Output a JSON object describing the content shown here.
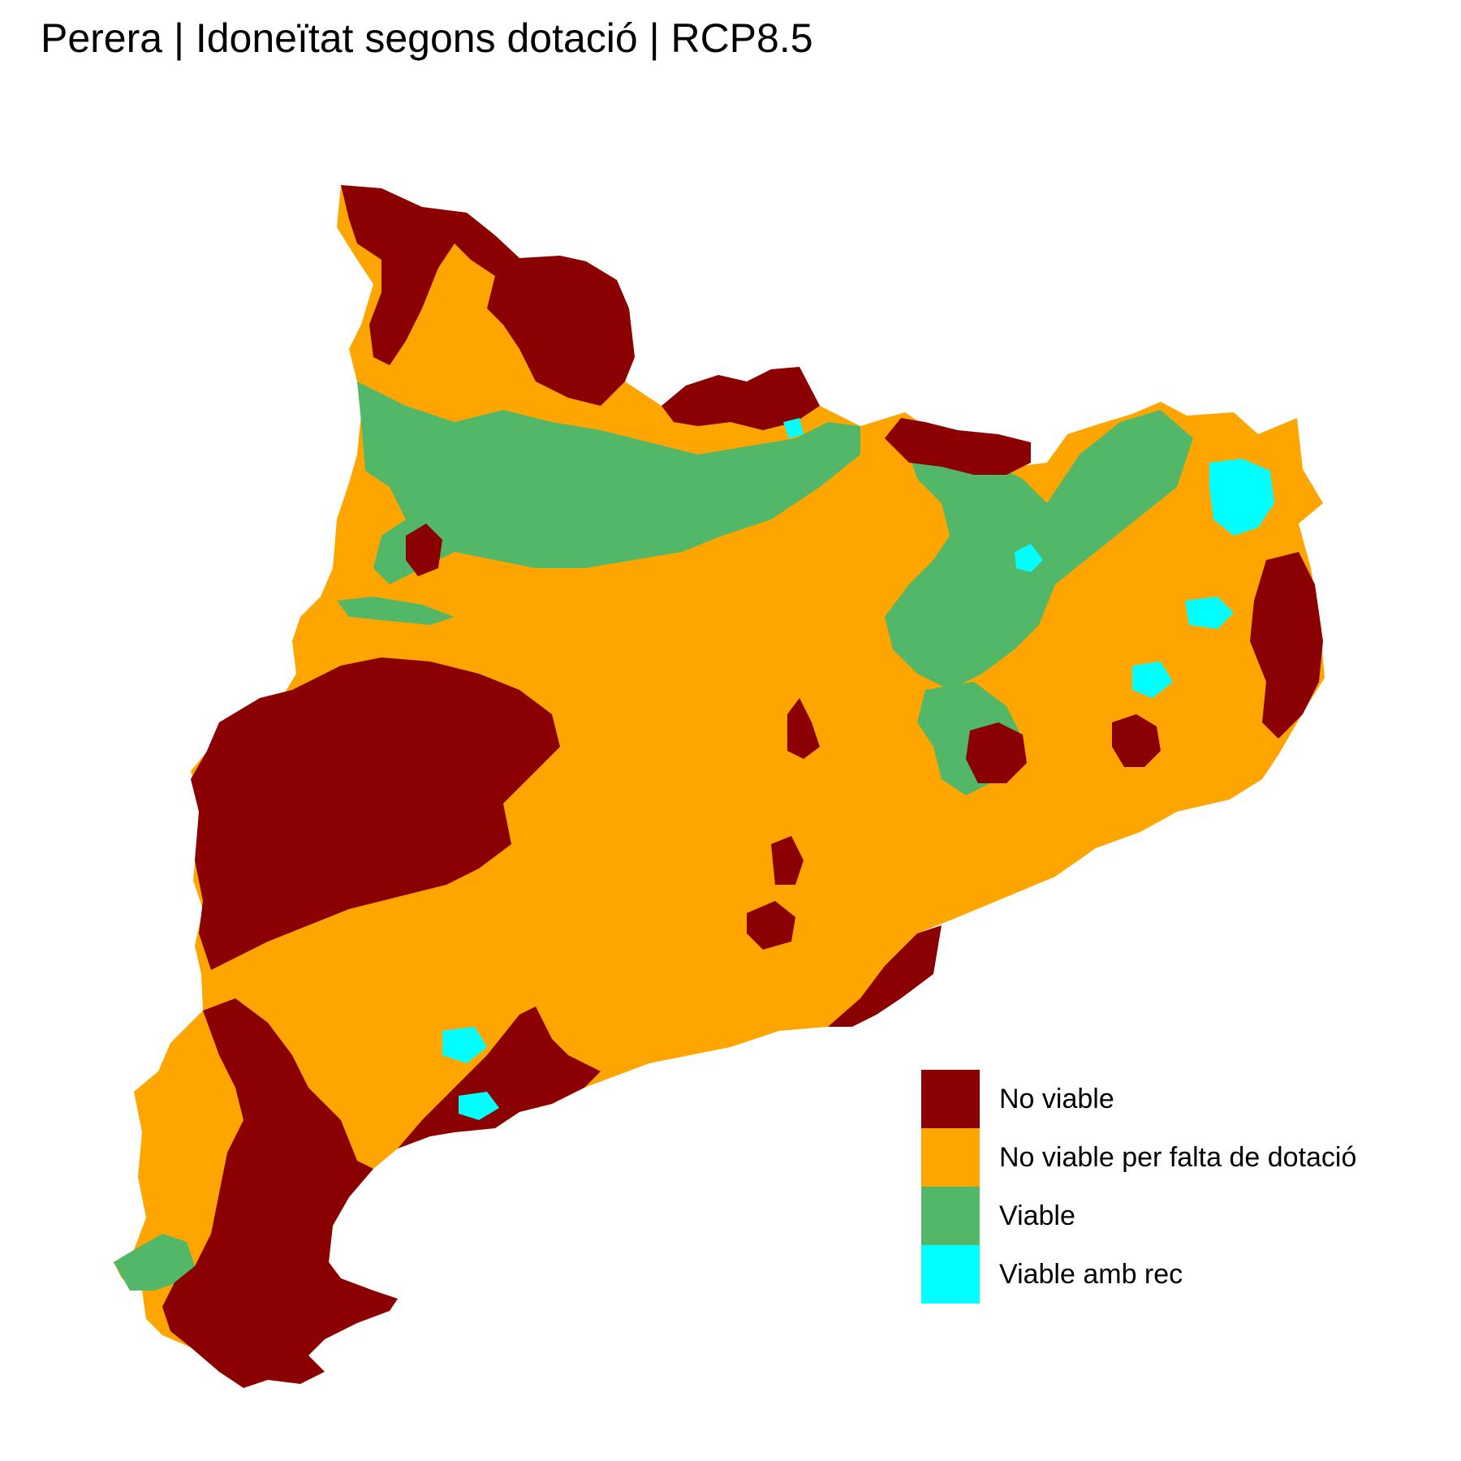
{
  "title": "Perera | Idoneïtat segons dotació | RCP8.5",
  "legend": {
    "items": [
      {
        "label": "No viable",
        "color": "#8B0000"
      },
      {
        "label": "No viable per falta de dotació",
        "color": "#FFA500"
      },
      {
        "label": "Viable",
        "color": "#52B868"
      },
      {
        "label": "Viable amb rec",
        "color": "#00FFFF"
      }
    ]
  }
}
